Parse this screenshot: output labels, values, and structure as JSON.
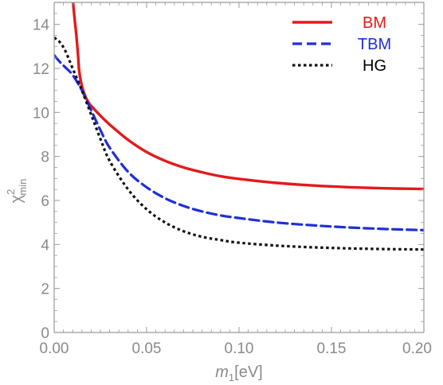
{
  "chart_data": {
    "type": "line",
    "xlabel": {
      "italic": "m",
      "sub": "1",
      "rest": "[eV]"
    },
    "ylabel": {
      "base": "χ",
      "sup": "2",
      "sub": "min"
    },
    "xlim": [
      0,
      0.2
    ],
    "ylim": [
      0,
      15
    ],
    "xticks": [
      0,
      0.05,
      0.1,
      0.15,
      0.2
    ],
    "xtick_labels": [
      "0.00",
      "0.05",
      "0.10",
      "0.15",
      "0.20"
    ],
    "yticks": [
      0,
      2,
      4,
      6,
      8,
      10,
      12,
      14
    ],
    "ytick_labels": [
      "0",
      "2",
      "4",
      "6",
      "8",
      "10",
      "12",
      "14"
    ],
    "grid": false,
    "legend_position": "top-right",
    "series": [
      {
        "name": "BM",
        "color": "#e31a1c",
        "style": "solid",
        "x": [
          0.0102,
          0.011,
          0.012,
          0.013,
          0.0135,
          0.015,
          0.017,
          0.019,
          0.02,
          0.025,
          0.03,
          0.04,
          0.05,
          0.06,
          0.07,
          0.08,
          0.09,
          0.1,
          0.12,
          0.14,
          0.16,
          0.18,
          0.2
        ],
        "y": [
          15.0,
          14.3,
          13.5,
          12.5,
          11.9,
          11.2,
          10.7,
          10.4,
          10.3,
          9.85,
          9.45,
          8.75,
          8.2,
          7.8,
          7.5,
          7.28,
          7.1,
          6.98,
          6.8,
          6.68,
          6.6,
          6.55,
          6.52
        ]
      },
      {
        "name": "TBM",
        "color": "#1f2fd6",
        "style": "dashed",
        "x": [
          0.0,
          0.003,
          0.006,
          0.01,
          0.015,
          0.02,
          0.025,
          0.03,
          0.04,
          0.05,
          0.06,
          0.07,
          0.08,
          0.09,
          0.1,
          0.12,
          0.14,
          0.16,
          0.18,
          0.2
        ],
        "y": [
          12.6,
          12.3,
          12.05,
          11.7,
          11.0,
          10.1,
          9.2,
          8.4,
          7.3,
          6.6,
          6.1,
          5.75,
          5.5,
          5.32,
          5.2,
          5.0,
          4.87,
          4.77,
          4.7,
          4.65
        ]
      },
      {
        "name": "HG",
        "color": "#111111",
        "style": "dotted",
        "x": [
          0.0,
          0.003,
          0.006,
          0.01,
          0.015,
          0.02,
          0.025,
          0.03,
          0.04,
          0.05,
          0.06,
          0.07,
          0.08,
          0.09,
          0.1,
          0.12,
          0.14,
          0.16,
          0.18,
          0.2
        ],
        "y": [
          13.4,
          13.2,
          12.8,
          12.0,
          11.0,
          9.9,
          8.8,
          7.8,
          6.5,
          5.6,
          5.0,
          4.6,
          4.35,
          4.2,
          4.08,
          3.95,
          3.87,
          3.82,
          3.79,
          3.77
        ]
      }
    ]
  }
}
